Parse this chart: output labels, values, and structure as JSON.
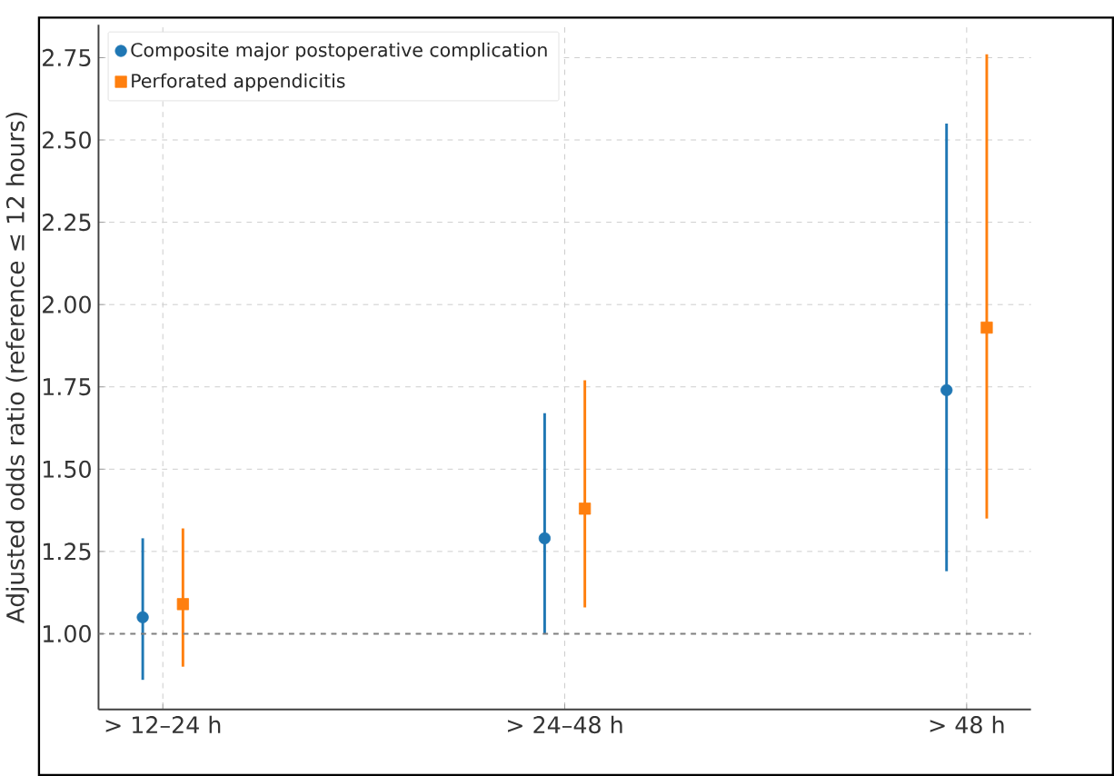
{
  "chart_data": {
    "type": "scatter",
    "ylabel": "Adjusted odds ratio (reference ≤ 12 hours)",
    "categories": [
      "> 12–24 h",
      "> 24–48 h",
      "> 48 h"
    ],
    "series": [
      {
        "name": "Composite major postoperative complication",
        "color": "#1f77b4",
        "marker": "circle",
        "values": [
          1.05,
          1.29,
          1.74
        ],
        "errors": [
          [
            0.86,
            1.29
          ],
          [
            1.0,
            1.67
          ],
          [
            1.19,
            2.55
          ]
        ]
      },
      {
        "name": "Perforated appendicitis",
        "color": "#ff7f0e",
        "marker": "square",
        "values": [
          1.09,
          1.38,
          1.93
        ],
        "errors": [
          [
            0.9,
            1.32
          ],
          [
            1.08,
            1.77
          ],
          [
            1.35,
            2.76
          ]
        ]
      }
    ],
    "ylim": [
      0.77,
      2.85
    ],
    "yticks": [
      {
        "value": 1.0,
        "label": "1.00"
      },
      {
        "value": 1.25,
        "label": "1.25"
      },
      {
        "value": 1.5,
        "label": "1.50"
      },
      {
        "value": 1.75,
        "label": "1.75"
      },
      {
        "value": 2.0,
        "label": "2.00"
      },
      {
        "value": 2.25,
        "label": "2.25"
      },
      {
        "value": 2.5,
        "label": "2.50"
      },
      {
        "value": 2.75,
        "label": "2.75"
      }
    ],
    "ref_lines": [
      {
        "axis": "y",
        "value": 1.0,
        "color": "#808080",
        "line_style": "dashed"
      }
    ],
    "grid": true,
    "legend": "top left"
  }
}
